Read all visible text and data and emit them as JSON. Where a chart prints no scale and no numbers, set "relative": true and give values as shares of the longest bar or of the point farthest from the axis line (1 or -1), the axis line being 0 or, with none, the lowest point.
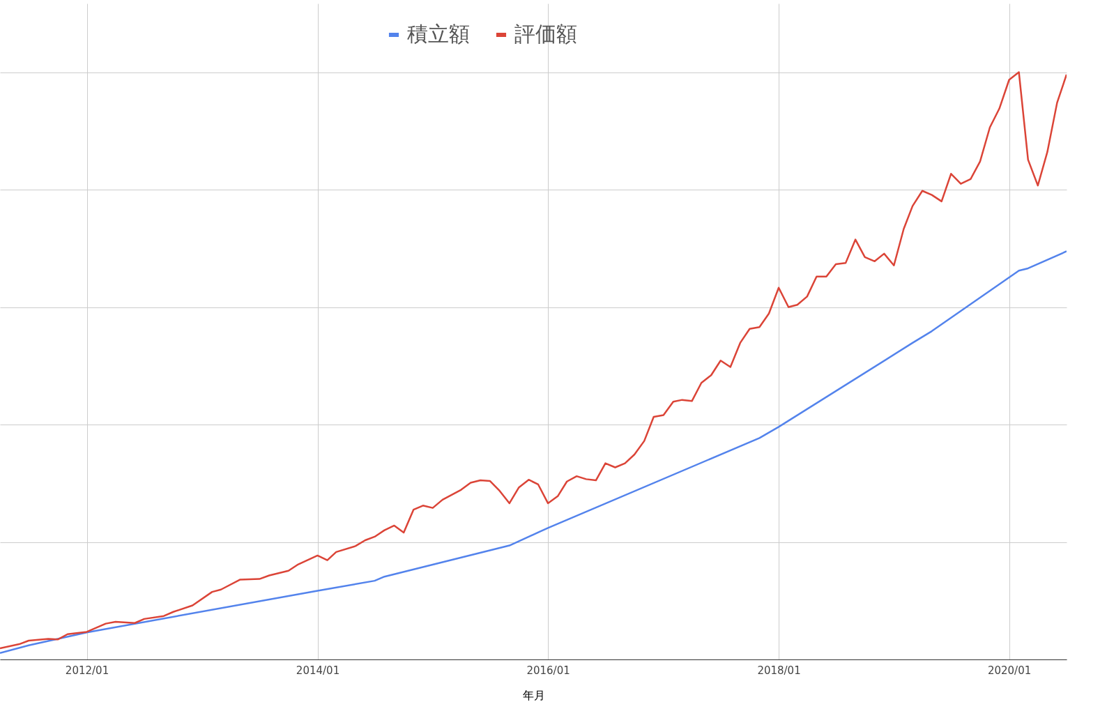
{
  "chart_data": {
    "type": "line",
    "relative": true,
    "xlabel": "年月",
    "xlim": [
      "2011-04",
      "2020-07"
    ],
    "xticks": [
      {
        "value": "2012-01",
        "label": "2012/01"
      },
      {
        "value": "2014-01",
        "label": "2014/01"
      },
      {
        "value": "2016-01",
        "label": "2016/01"
      },
      {
        "value": "2018-01",
        "label": "2018/01"
      },
      {
        "value": "2020-01",
        "label": "2020/01"
      }
    ],
    "grid": true,
    "legend": "top",
    "marker": "none",
    "line_style": "solid",
    "series": [
      {
        "name": "積立額",
        "color": "#5383ec",
        "x": [
          "2011-04",
          "2011-07",
          "2012-01",
          "2014-01",
          "2014-07",
          "2014-08",
          "2015-09",
          "2016-01",
          "2017-11",
          "2018-01",
          "2019-03",
          "2019-05",
          "2020-02",
          "2020-03",
          "2020-07"
        ],
        "values": [
          0.011,
          0.024,
          0.046,
          0.117,
          0.134,
          0.141,
          0.194,
          0.224,
          0.377,
          0.396,
          0.539,
          0.559,
          0.662,
          0.666,
          0.695
        ]
      },
      {
        "name": "評価額",
        "color": "#db4437",
        "x": [
          "2011-04",
          "2011-06",
          "2011-07",
          "2011-09",
          "2011-10",
          "2011-11",
          "2012-01",
          "2012-03",
          "2012-04",
          "2012-06",
          "2012-07",
          "2012-09",
          "2012-10",
          "2012-12",
          "2013-02",
          "2013-03",
          "2013-05",
          "2013-07",
          "2013-08",
          "2013-10",
          "2013-11",
          "2014-01",
          "2014-02",
          "2014-03",
          "2014-05",
          "2014-06",
          "2014-07",
          "2014-08",
          "2014-09",
          "2014-10",
          "2014-11",
          "2014-12",
          "2015-01",
          "2015-02",
          "2015-04",
          "2015-05",
          "2015-06",
          "2015-07",
          "2015-08",
          "2015-09",
          "2015-10",
          "2015-11",
          "2015-12",
          "2016-01",
          "2016-02",
          "2016-03",
          "2016-04",
          "2016-05",
          "2016-06",
          "2016-07",
          "2016-08",
          "2016-09",
          "2016-10",
          "2016-11",
          "2016-12",
          "2017-01",
          "2017-02",
          "2017-03",
          "2017-04",
          "2017-05",
          "2017-06",
          "2017-07",
          "2017-08",
          "2017-09",
          "2017-10",
          "2017-11",
          "2017-12",
          "2018-01",
          "2018-02",
          "2018-03",
          "2018-04",
          "2018-05",
          "2018-06",
          "2018-07",
          "2018-08",
          "2018-09",
          "2018-10",
          "2018-11",
          "2018-12",
          "2019-01",
          "2019-02",
          "2019-03",
          "2019-04",
          "2019-05",
          "2019-06",
          "2019-07",
          "2019-08",
          "2019-09",
          "2019-10",
          "2019-11",
          "2019-12",
          "2020-01",
          "2020-02",
          "2020-03",
          "2020-04",
          "2020-05",
          "2020-06",
          "2020-07"
        ],
        "values": [
          0.019,
          0.026,
          0.032,
          0.035,
          0.034,
          0.043,
          0.047,
          0.061,
          0.064,
          0.062,
          0.069,
          0.074,
          0.081,
          0.092,
          0.115,
          0.119,
          0.136,
          0.137,
          0.143,
          0.151,
          0.162,
          0.177,
          0.169,
          0.183,
          0.193,
          0.203,
          0.209,
          0.22,
          0.228,
          0.216,
          0.255,
          0.262,
          0.258,
          0.272,
          0.289,
          0.301,
          0.305,
          0.304,
          0.287,
          0.266,
          0.293,
          0.306,
          0.298,
          0.266,
          0.278,
          0.303,
          0.312,
          0.307,
          0.305,
          0.334,
          0.327,
          0.334,
          0.349,
          0.372,
          0.413,
          0.416,
          0.439,
          0.442,
          0.44,
          0.471,
          0.484,
          0.509,
          0.498,
          0.539,
          0.563,
          0.566,
          0.589,
          0.633,
          0.6,
          0.604,
          0.618,
          0.652,
          0.652,
          0.673,
          0.675,
          0.715,
          0.685,
          0.678,
          0.691,
          0.671,
          0.733,
          0.772,
          0.798,
          0.791,
          0.78,
          0.827,
          0.81,
          0.818,
          0.848,
          0.906,
          0.938,
          0.987,
          1,
          0.851,
          0.807,
          0.864,
          0.948,
          0.996
        ]
      }
    ]
  }
}
